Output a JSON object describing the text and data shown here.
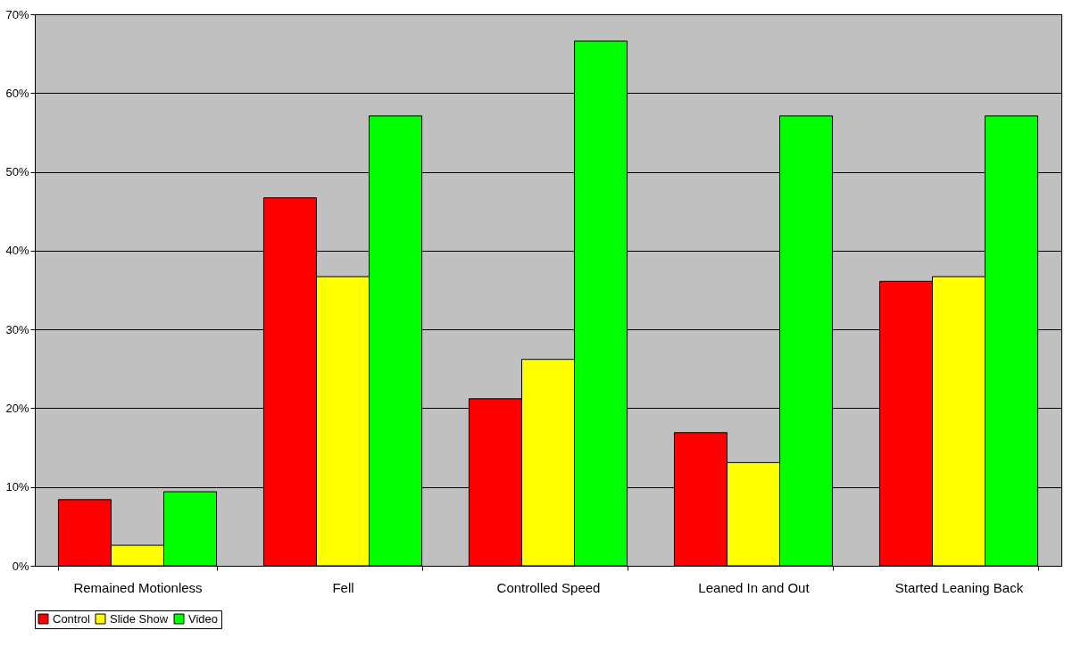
{
  "chart_data": {
    "type": "bar",
    "categories": [
      "Remained Motionless",
      "Fell",
      "Controlled Speed",
      "Leaned In and Out",
      "Started Leaning Back"
    ],
    "series": [
      {
        "name": "Control",
        "color": "#ff0000",
        "values": [
          8.4,
          46.7,
          21.2,
          16.9,
          36.1
        ]
      },
      {
        "name": "Slide Show",
        "color": "#ffff00",
        "values": [
          2.6,
          36.7,
          26.2,
          13.1,
          36.7
        ]
      },
      {
        "name": "Video",
        "color": "#00ff00",
        "values": [
          9.4,
          57.1,
          66.6,
          57.1,
          57.1
        ]
      }
    ],
    "ylim": [
      0,
      70
    ],
    "yticks": [
      {
        "value": 0,
        "label": "0%"
      },
      {
        "value": 10,
        "label": "10%"
      },
      {
        "value": 20,
        "label": "20%"
      },
      {
        "value": 30,
        "label": "30%"
      },
      {
        "value": 40,
        "label": "40%"
      },
      {
        "value": 50,
        "label": "50%"
      },
      {
        "value": 60,
        "label": "60%"
      },
      {
        "value": 70,
        "label": "70%"
      }
    ],
    "grid": "y",
    "legend": "bottom"
  }
}
